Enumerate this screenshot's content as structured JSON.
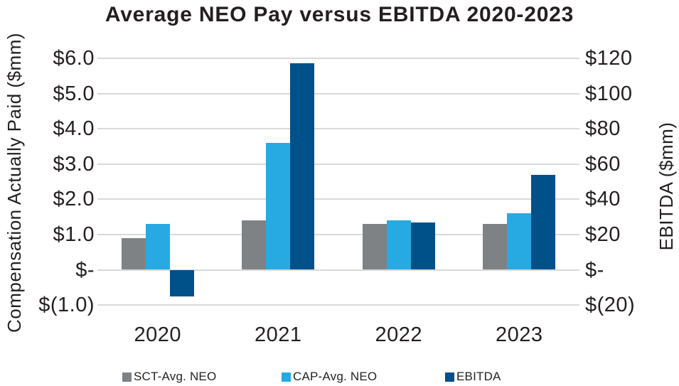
{
  "title": "Average NEO Pay versus EBITDA 2020-2023",
  "left_axis": {
    "title": "Compensation Actually Paid ($mm)",
    "tick_labels": [
      "$6.0",
      "$5.0",
      "$4.0",
      "$3.0",
      "$2.0",
      "$1.0",
      "$-",
      "$(1.0)"
    ],
    "tick_values": [
      6,
      5,
      4,
      3,
      2,
      1,
      0,
      -1
    ]
  },
  "right_axis": {
    "title": "EBITDA ($mm)",
    "tick_labels": [
      "$120",
      "$100",
      "$80",
      "$60",
      "$40",
      "$20",
      "$-",
      "$(20)"
    ],
    "tick_values": [
      120,
      100,
      80,
      60,
      40,
      20,
      0,
      -20
    ]
  },
  "x_axis": {
    "categories": [
      "2020",
      "2021",
      "2022",
      "2023"
    ]
  },
  "legend": {
    "position": "bottom",
    "items": [
      {
        "label": "SCT-Avg. NEO",
        "color": "#7F8285"
      },
      {
        "label": "CAP-Avg. NEO",
        "color": "#27AAE1"
      },
      {
        "label": "EBITDA",
        "color": "#00508A"
      }
    ]
  },
  "colors": {
    "text": "#231F20",
    "gridline": "#D9D9D9",
    "background": "#FFFFFF",
    "sct_avg_neo": "#7F8285",
    "cap_avg_neo": "#27AAE1",
    "ebitda": "#00508A"
  },
  "chart_data": {
    "type": "bar",
    "title": "Average NEO Pay versus EBITDA 2020-2023",
    "categories": [
      "2020",
      "2021",
      "2022",
      "2023"
    ],
    "series": [
      {
        "name": "SCT-Avg. NEO",
        "axis": "left",
        "color": "#7F8285",
        "values": [
          0.9,
          1.4,
          1.3,
          1.3
        ]
      },
      {
        "name": "CAP-Avg. NEO",
        "axis": "left",
        "color": "#27AAE1",
        "values": [
          1.3,
          3.6,
          1.4,
          1.6
        ]
      },
      {
        "name": "EBITDA",
        "axis": "right",
        "color": "#00508A",
        "values": [
          -15,
          117,
          27,
          54
        ]
      }
    ],
    "left_ylabel": "Compensation Actually Paid ($mm)",
    "right_ylabel": "EBITDA ($mm)",
    "left_ylim": [
      -1,
      6
    ],
    "right_ylim": [
      -20,
      120
    ],
    "left_tick_step": 1,
    "right_tick_step": 20,
    "grid": true,
    "legend_position": "bottom"
  }
}
